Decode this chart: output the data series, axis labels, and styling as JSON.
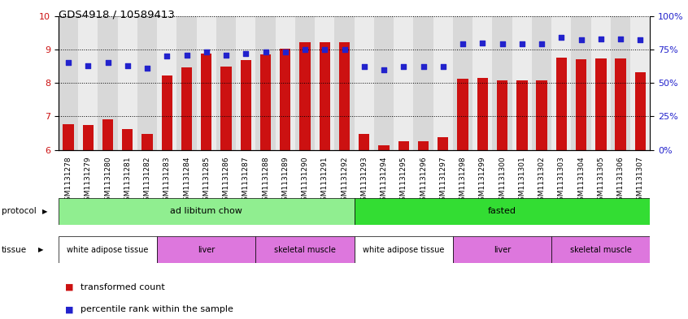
{
  "title": "GDS4918 / 10589413",
  "samples": [
    "GSM1131278",
    "GSM1131279",
    "GSM1131280",
    "GSM1131281",
    "GSM1131282",
    "GSM1131283",
    "GSM1131284",
    "GSM1131285",
    "GSM1131286",
    "GSM1131287",
    "GSM1131288",
    "GSM1131289",
    "GSM1131290",
    "GSM1131291",
    "GSM1131292",
    "GSM1131293",
    "GSM1131294",
    "GSM1131295",
    "GSM1131296",
    "GSM1131297",
    "GSM1131298",
    "GSM1131299",
    "GSM1131300",
    "GSM1131301",
    "GSM1131302",
    "GSM1131303",
    "GSM1131304",
    "GSM1131305",
    "GSM1131306",
    "GSM1131307"
  ],
  "bar_values": [
    6.78,
    6.75,
    6.92,
    6.63,
    6.47,
    8.22,
    8.47,
    8.88,
    8.48,
    8.68,
    8.85,
    9.03,
    9.22,
    9.22,
    9.22,
    6.48,
    6.15,
    6.25,
    6.25,
    6.38,
    8.12,
    8.15,
    8.07,
    8.08,
    8.07,
    8.75,
    8.7,
    8.74,
    8.74,
    8.33
  ],
  "dot_values": [
    65,
    63,
    65,
    63,
    61,
    70,
    71,
    73,
    71,
    72,
    73,
    73,
    75,
    75,
    75,
    62,
    60,
    62,
    62,
    62,
    79,
    80,
    79,
    79,
    79,
    84,
    82,
    83,
    83,
    82
  ],
  "ylim_left": [
    6,
    10
  ],
  "ylim_right": [
    0,
    100
  ],
  "yticks_left": [
    6,
    7,
    8,
    9,
    10
  ],
  "yticks_right": [
    0,
    25,
    50,
    75,
    100
  ],
  "bar_color": "#cc1111",
  "dot_color": "#2222cc",
  "protocol_groups": [
    {
      "label": "ad libitum chow",
      "start": 0,
      "end": 14,
      "color": "#90ee90"
    },
    {
      "label": "fasted",
      "start": 15,
      "end": 29,
      "color": "#33dd33"
    }
  ],
  "tissue_groups": [
    {
      "label": "white adipose tissue",
      "start": 0,
      "end": 4,
      "color": "#ffffff"
    },
    {
      "label": "liver",
      "start": 5,
      "end": 9,
      "color": "#dd77dd"
    },
    {
      "label": "skeletal muscle",
      "start": 10,
      "end": 14,
      "color": "#dd77dd"
    },
    {
      "label": "white adipose tissue",
      "start": 15,
      "end": 19,
      "color": "#ffffff"
    },
    {
      "label": "liver",
      "start": 20,
      "end": 24,
      "color": "#dd77dd"
    },
    {
      "label": "skeletal muscle",
      "start": 25,
      "end": 29,
      "color": "#dd77dd"
    }
  ],
  "legend_items": [
    {
      "label": "transformed count",
      "color": "#cc1111"
    },
    {
      "label": "percentile rank within the sample",
      "color": "#2222cc"
    }
  ]
}
